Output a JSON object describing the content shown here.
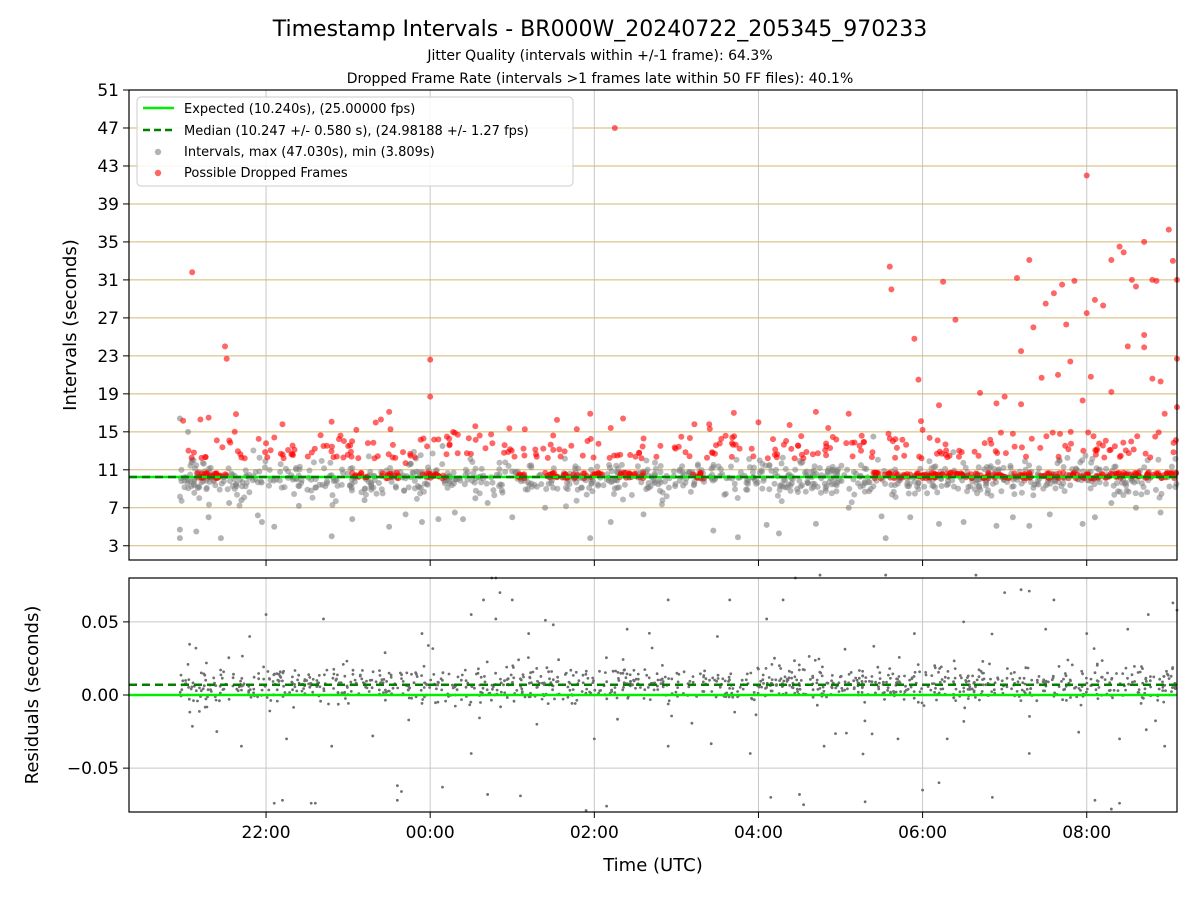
{
  "colors": {
    "expected": "#00ee00",
    "median": "#008000",
    "intervals": "#808080",
    "dropped": "#ff0000",
    "hgrid": "#d2b870",
    "vgrid": "#c8c8c8",
    "residual_points": "#707070"
  },
  "header": {
    "title": "Timestamp Intervals - BR000W_20240722_205345_970233",
    "jitter": "Jitter Quality (intervals within +/-1 frame): 64.3%",
    "dropped_rate": "Dropped Frame Rate (intervals >1 frames late within 50 FF files): 40.1%"
  },
  "chart_data": [
    {
      "type": "scatter",
      "ylabel": "Intervals (seconds)",
      "ylim": [
        1.5,
        51
      ],
      "xlim_hours": [
        -3.67,
        9.1
      ],
      "y_ticks": [
        3,
        7,
        11,
        15,
        19,
        23,
        27,
        31,
        35,
        39,
        43,
        47,
        51
      ],
      "x_tick_hours": [
        -2,
        0,
        2,
        4,
        6,
        8
      ],
      "grid": true,
      "legend_position": "upper-left",
      "legend": [
        "Expected (10.240s), (25.00000 fps)",
        "Median (10.247 +/- 0.580 s), (24.98188 +/- 1.27 fps)",
        "Intervals, max (47.030s), min (3.809s)",
        "Possible Dropped Frames"
      ],
      "expected": 10.24,
      "median": 10.247,
      "series": [
        {
          "name": "Intervals",
          "points": [
            [
              -3.05,
              16.4
            ],
            [
              -3.05,
              4.7
            ],
            [
              -3.05,
              3.8
            ],
            [
              -2.95,
              15.0
            ],
            [
              -2.9,
              12.0
            ],
            [
              -2.85,
              4.5
            ],
            [
              -2.7,
              6.0
            ],
            [
              -2.55,
              3.8
            ],
            [
              -2.45,
              7.5
            ],
            [
              -2.3,
              7.8
            ],
            [
              -2.1,
              6.2
            ],
            [
              -2.05,
              5.5
            ],
            [
              -1.9,
              5.0
            ],
            [
              -1.6,
              7.2
            ],
            [
              -1.2,
              4.0
            ],
            [
              -0.95,
              5.8
            ],
            [
              -0.8,
              7.8
            ],
            [
              -0.5,
              5.0
            ],
            [
              -0.3,
              6.3
            ],
            [
              -0.1,
              5.5
            ],
            [
              0.1,
              5.8
            ],
            [
              0.15,
              13.5
            ],
            [
              0.3,
              6.5
            ],
            [
              0.4,
              5.8
            ],
            [
              0.55,
              8.0
            ],
            [
              0.7,
              7.5
            ],
            [
              1.0,
              6.0
            ],
            [
              1.4,
              7.0
            ],
            [
              1.95,
              3.8
            ],
            [
              2.2,
              5.5
            ],
            [
              2.6,
              6.3
            ],
            [
              3.45,
              4.6
            ],
            [
              3.75,
              3.9
            ],
            [
              4.1,
              5.2
            ],
            [
              4.25,
              4.3
            ],
            [
              4.7,
              5.3
            ],
            [
              5.1,
              7.0
            ],
            [
              5.4,
              14.5
            ],
            [
              5.5,
              6.1
            ],
            [
              5.55,
              3.8
            ],
            [
              5.85,
              6.0
            ],
            [
              6.2,
              5.3
            ],
            [
              6.5,
              5.5
            ],
            [
              6.9,
              5.1
            ],
            [
              7.1,
              6.0
            ],
            [
              7.3,
              5.1
            ],
            [
              7.55,
              6.3
            ],
            [
              7.95,
              5.3
            ],
            [
              8.1,
              6.0
            ],
            [
              8.3,
              7.5
            ],
            [
              8.6,
              7.0
            ],
            [
              8.9,
              6.5
            ]
          ],
          "noise": {
            "count": 900,
            "center": 10.0,
            "spread": 1.6
          }
        },
        {
          "name": "Possible Dropped Frames",
          "points": [
            [
              -2.9,
              31.8
            ],
            [
              -2.8,
              16.3
            ],
            [
              -2.7,
              16.5
            ],
            [
              -2.6,
              14.1
            ],
            [
              -2.5,
              24.0
            ],
            [
              -2.48,
              22.7
            ],
            [
              -2.3,
              12.3
            ],
            [
              -2.0,
              13.8
            ],
            [
              -1.8,
              15.8
            ],
            [
              -1.3,
              13.5
            ],
            [
              -1.0,
              13.5
            ],
            [
              -0.9,
              15.2
            ],
            [
              -0.6,
              16.3
            ],
            [
              -0.5,
              17.1
            ],
            [
              -0.3,
              11.7
            ],
            [
              0.0,
              22.6
            ],
            [
              0.0,
              18.7
            ],
            [
              0.1,
              14.2
            ],
            [
              0.3,
              14.9
            ],
            [
              0.9,
              12.8
            ],
            [
              1.5,
              13.1
            ],
            [
              1.95,
              16.9
            ],
            [
              2.2,
              15.4
            ],
            [
              2.25,
              47.0
            ],
            [
              2.35,
              16.4
            ],
            [
              2.6,
              14.3
            ],
            [
              3.4,
              15.8
            ],
            [
              3.7,
              17.0
            ],
            [
              4.0,
              16.0
            ],
            [
              4.4,
              13.2
            ],
            [
              4.7,
              17.1
            ],
            [
              4.85,
              15.4
            ],
            [
              5.1,
              16.9
            ],
            [
              5.25,
              13.0
            ],
            [
              5.6,
              32.4
            ],
            [
              5.62,
              30.0
            ],
            [
              5.9,
              24.8
            ],
            [
              5.95,
              20.5
            ],
            [
              6.0,
              15.2
            ],
            [
              6.2,
              17.8
            ],
            [
              6.25,
              30.8
            ],
            [
              6.4,
              26.8
            ],
            [
              6.7,
              19.1
            ],
            [
              6.9,
              18.0
            ],
            [
              7.0,
              18.7
            ],
            [
              7.15,
              31.2
            ],
            [
              7.2,
              23.5
            ],
            [
              7.3,
              33.1
            ],
            [
              7.35,
              26.0
            ],
            [
              7.5,
              28.5
            ],
            [
              7.6,
              29.6
            ],
            [
              7.7,
              30.5
            ],
            [
              7.75,
              26.3
            ],
            [
              7.8,
              22.4
            ],
            [
              7.85,
              30.9
            ],
            [
              8.0,
              42.0
            ],
            [
              8.05,
              20.8
            ],
            [
              8.2,
              28.3
            ],
            [
              8.3,
              33.1
            ],
            [
              8.4,
              34.5
            ],
            [
              8.45,
              33.9
            ],
            [
              8.5,
              24.0
            ],
            [
              8.55,
              31.0
            ],
            [
              8.6,
              30.3
            ],
            [
              8.7,
              35.0
            ],
            [
              8.8,
              31.0
            ],
            [
              8.85,
              30.9
            ],
            [
              8.9,
              20.3
            ],
            [
              9.0,
              36.3
            ],
            [
              9.05,
              33.0
            ],
            [
              9.1,
              31.0
            ],
            [
              9.1,
              22.7
            ],
            [
              9.1,
              17.6
            ],
            [
              8.95,
              16.9
            ],
            [
              8.7,
              25.2
            ],
            [
              8.7,
              23.9
            ],
            [
              8.8,
              20.6
            ],
            [
              8.3,
              19.2
            ],
            [
              7.95,
              18.3
            ],
            [
              7.2,
              17.9
            ],
            [
              7.1,
              14.8
            ],
            [
              7.65,
              21.0
            ],
            [
              7.45,
              20.7
            ],
            [
              8.1,
              28.9
            ],
            [
              8.0,
              27.5
            ]
          ],
          "band": {
            "count": 420,
            "min": 10.1,
            "max": 10.7
          },
          "noise": {
            "count": 260,
            "center": 12.2,
            "spread": 1.6
          }
        }
      ]
    },
    {
      "type": "scatter",
      "ylabel": "Residuals (seconds)",
      "xlabel": "Time (UTC)",
      "ylim": [
        -0.08,
        0.08
      ],
      "y_tick_values": [
        -0.05,
        0.0,
        0.05
      ],
      "y_tick_labels": [
        "−0.05",
        "0.00",
        "0.05"
      ],
      "x_tick_hours": [
        -2,
        0,
        2,
        4,
        6,
        8
      ],
      "x_tick_labels": [
        "22:00",
        "00:00",
        "02:00",
        "04:00",
        "06:00",
        "08:00"
      ],
      "expected_residual": 0.0,
      "median_residual": 0.007,
      "grid": true,
      "series": [
        {
          "name": "Residuals",
          "points": [
            [
              -1.4,
              -0.074
            ],
            [
              -1.45,
              -0.074
            ],
            [
              -1.9,
              -0.074
            ],
            [
              -1.8,
              -0.072
            ],
            [
              -0.4,
              -0.072
            ],
            [
              -0.4,
              -0.062
            ],
            [
              -0.35,
              -0.066
            ],
            [
              0.15,
              -0.063
            ],
            [
              0.65,
              0.065
            ],
            [
              0.5,
              0.055
            ],
            [
              0.75,
              0.08
            ],
            [
              0.8,
              0.08
            ],
            [
              0.85,
              0.07
            ],
            [
              1.0,
              0.065
            ],
            [
              0.7,
              -0.068
            ],
            [
              1.1,
              -0.069
            ],
            [
              1.9,
              -0.079
            ],
            [
              2.15,
              -0.076
            ],
            [
              2.9,
              0.065
            ],
            [
              3.65,
              0.065
            ],
            [
              4.15,
              -0.07
            ],
            [
              4.3,
              0.065
            ],
            [
              4.45,
              0.08
            ],
            [
              4.5,
              -0.068
            ],
            [
              4.55,
              -0.075
            ],
            [
              4.75,
              0.082
            ],
            [
              5.3,
              -0.073
            ],
            [
              5.55,
              0.082
            ],
            [
              6.0,
              -0.065
            ],
            [
              6.2,
              -0.06
            ],
            [
              6.65,
              0.082
            ],
            [
              6.85,
              -0.07
            ],
            [
              7.0,
              0.07
            ],
            [
              7.2,
              0.072
            ],
            [
              7.3,
              0.071
            ],
            [
              7.6,
              0.065
            ],
            [
              8.1,
              -0.072
            ],
            [
              8.3,
              -0.078
            ],
            [
              8.4,
              -0.074
            ],
            [
              8.75,
              0.055
            ],
            [
              9.05,
              0.063
            ],
            [
              9.1,
              0.058
            ],
            [
              -2.0,
              0.055
            ],
            [
              -2.2,
              0.04
            ],
            [
              -1.3,
              0.052
            ],
            [
              -0.1,
              0.042
            ],
            [
              0.8,
              0.052
            ],
            [
              1.2,
              0.042
            ],
            [
              1.5,
              0.048
            ],
            [
              2.4,
              0.045
            ],
            [
              3.5,
              0.04
            ],
            [
              4.1,
              0.052
            ],
            [
              5.9,
              0.042
            ],
            [
              6.5,
              0.05
            ],
            [
              7.5,
              0.045
            ],
            [
              8.0,
              0.042
            ],
            [
              8.5,
              0.045
            ],
            [
              -2.6,
              -0.025
            ],
            [
              -2.3,
              -0.035
            ],
            [
              -1.75,
              -0.03
            ],
            [
              -1.2,
              -0.035
            ],
            [
              -0.7,
              -0.028
            ],
            [
              0.5,
              -0.04
            ],
            [
              1.3,
              -0.02
            ],
            [
              2.0,
              -0.03
            ],
            [
              2.9,
              -0.035
            ],
            [
              3.9,
              -0.04
            ],
            [
              4.8,
              -0.035
            ],
            [
              5.7,
              -0.03
            ],
            [
              6.3,
              -0.03
            ],
            [
              7.3,
              -0.04
            ],
            [
              8.4,
              -0.03
            ],
            [
              8.95,
              -0.035
            ]
          ],
          "noise": {
            "count": 1100,
            "center": 0.007,
            "spread": 0.006
          }
        }
      ]
    }
  ]
}
